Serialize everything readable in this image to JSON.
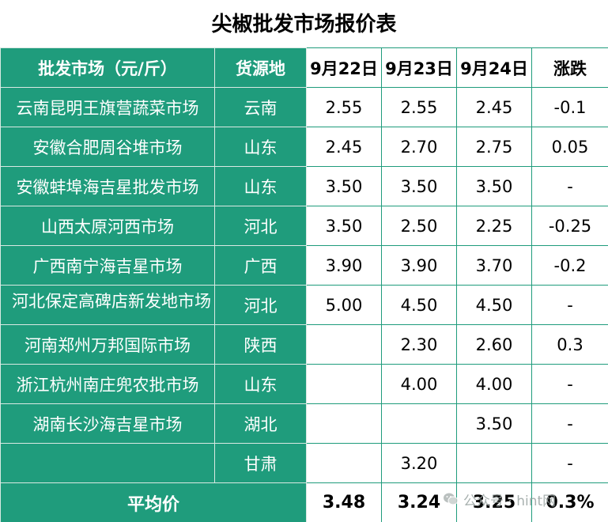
{
  "title": "尖椒批发市场报价表",
  "header": {
    "market": "批发市场（元/斤）",
    "origin": "货源地",
    "date1": "9月22日",
    "date2": "9月23日",
    "date3": "9月24日",
    "change": "涨跌"
  },
  "rows": [
    {
      "market": "云南昆明王旗营蔬菜市场",
      "origin": "云南",
      "d1": "2.55",
      "d2": "2.55",
      "d3": "2.45",
      "chg": "-0.1"
    },
    {
      "market": "安徽合肥周谷堆市场",
      "origin": "山东",
      "d1": "2.45",
      "d2": "2.70",
      "d3": "2.75",
      "chg": "0.05"
    },
    {
      "market": "安徽蚌埠海吉星批发市场",
      "origin": "山东",
      "d1": "3.50",
      "d2": "3.50",
      "d3": "3.50",
      "chg": "-"
    },
    {
      "market": "山西太原河西市场",
      "origin": "河北",
      "d1": "3.50",
      "d2": "2.50",
      "d3": "2.25",
      "chg": "-0.25"
    },
    {
      "market": "广西南宁海吉星市场",
      "origin": "广西",
      "d1": "3.90",
      "d2": "3.90",
      "d3": "3.70",
      "chg": "-0.2"
    },
    {
      "market": "河北保定高碑店新发地市场",
      "origin": "河北",
      "d1": "5.00",
      "d2": "4.50",
      "d3": "4.50",
      "chg": "-"
    },
    {
      "market": "河南郑州万邦国际市场",
      "origin": "陕西",
      "d1": "",
      "d2": "2.30",
      "d3": "2.60",
      "chg": "0.3"
    },
    {
      "market": "浙江杭州南庄兜农批市场",
      "origin": "山东",
      "d1": "",
      "d2": "4.00",
      "d3": "4.00",
      "chg": "-"
    },
    {
      "market": "湖南长沙海吉星市场",
      "origin": "湖北",
      "d1": "",
      "d2": "",
      "d3": "3.50",
      "chg": "-"
    },
    {
      "market": "",
      "origin": "甘肃",
      "d1": "",
      "d2": "3.20",
      "d3": "",
      "chg": "-"
    }
  ],
  "average": {
    "label": "平均价",
    "d1": "3.48",
    "d2": "3.24",
    "d3": "3.25",
    "chg": "0.3%"
  },
  "watermark": {
    "icon": "wechat-logo-icon",
    "text": "公众号 · hint网"
  },
  "colors": {
    "teal": "#1f9c7c",
    "teal_border": "#d9e9e3"
  }
}
